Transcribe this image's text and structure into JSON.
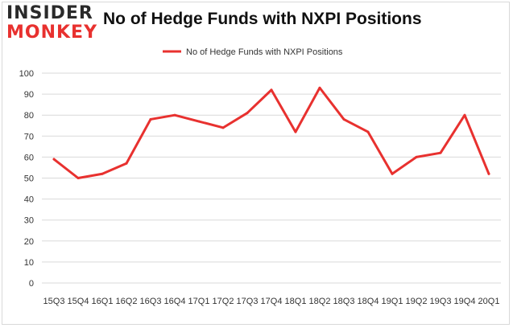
{
  "header": {
    "logo_line1": "INSIDER",
    "logo_line2": "MONKEY",
    "title": "No of Hedge Funds with NXPI Positions"
  },
  "colors": {
    "series": "#e8312f",
    "grid": "#d9d9d9",
    "logo_dark": "#2a2a2a",
    "logo_red": "#e8312f"
  },
  "chart_data": {
    "type": "line",
    "title": "No of Hedge Funds with NXPI Positions",
    "legend_position": "top-center",
    "grid": true,
    "ylim": [
      0,
      100
    ],
    "yticks": [
      0,
      10,
      20,
      30,
      40,
      50,
      60,
      70,
      80,
      90,
      100
    ],
    "categories": [
      "15Q3",
      "15Q4",
      "16Q1",
      "16Q2",
      "16Q3",
      "16Q4",
      "17Q1",
      "17Q2",
      "17Q3",
      "17Q4",
      "18Q1",
      "18Q2",
      "18Q3",
      "18Q4",
      "19Q1",
      "19Q2",
      "19Q3",
      "19Q4",
      "20Q1"
    ],
    "series": [
      {
        "name": "No of Hedge Funds with NXPI Positions",
        "values": [
          59,
          50,
          52,
          57,
          78,
          80,
          77,
          74,
          81,
          92,
          72,
          93,
          78,
          72,
          52,
          60,
          62,
          80,
          52
        ]
      }
    ]
  }
}
